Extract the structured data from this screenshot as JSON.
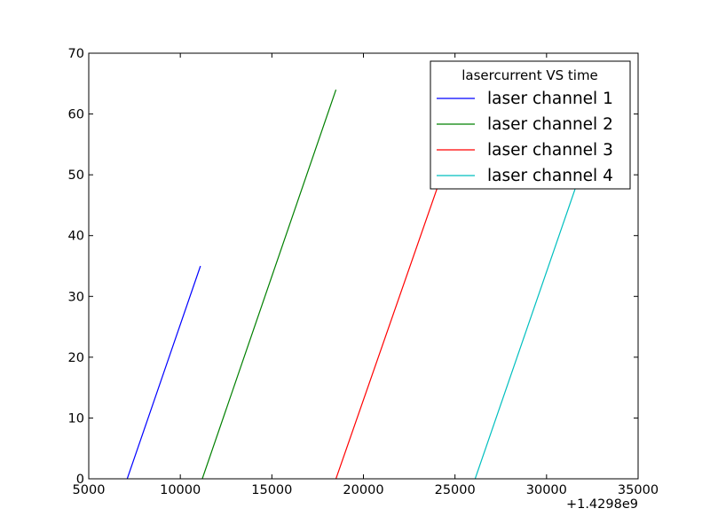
{
  "chart_data": {
    "type": "line",
    "title": "",
    "xlabel": "",
    "ylabel": "",
    "x_offset_label": "+1.4298e9",
    "xlim": [
      5000,
      35000
    ],
    "ylim": [
      0,
      70
    ],
    "x_ticks": [
      5000,
      10000,
      15000,
      20000,
      25000,
      30000,
      35000
    ],
    "x_tick_labels": [
      "5000",
      "10000",
      "15000",
      "20000",
      "25000",
      "30000",
      "35000"
    ],
    "y_ticks": [
      0,
      10,
      20,
      30,
      40,
      50,
      60,
      70
    ],
    "y_tick_labels": [
      "0",
      "10",
      "20",
      "30",
      "40",
      "50",
      "60",
      "70"
    ],
    "grid": false,
    "legend": {
      "title": "lasercurrent VS time",
      "placement": "top-right"
    },
    "series": [
      {
        "name": "laser channel 1",
        "color": "#0000ff",
        "x": [
          7100,
          11100
        ],
        "y": [
          0,
          35
        ]
      },
      {
        "name": "laser channel 2",
        "color": "#008000",
        "x": [
          11200,
          18500
        ],
        "y": [
          0,
          64
        ]
      },
      {
        "name": "laser channel 3",
        "color": "#ff0000",
        "x": [
          18500,
          25900
        ],
        "y": [
          0,
          64
        ]
      },
      {
        "name": "laser channel 4",
        "color": "#00bfbf",
        "x": [
          26100,
          33200
        ],
        "y": [
          0,
          62
        ]
      }
    ]
  }
}
